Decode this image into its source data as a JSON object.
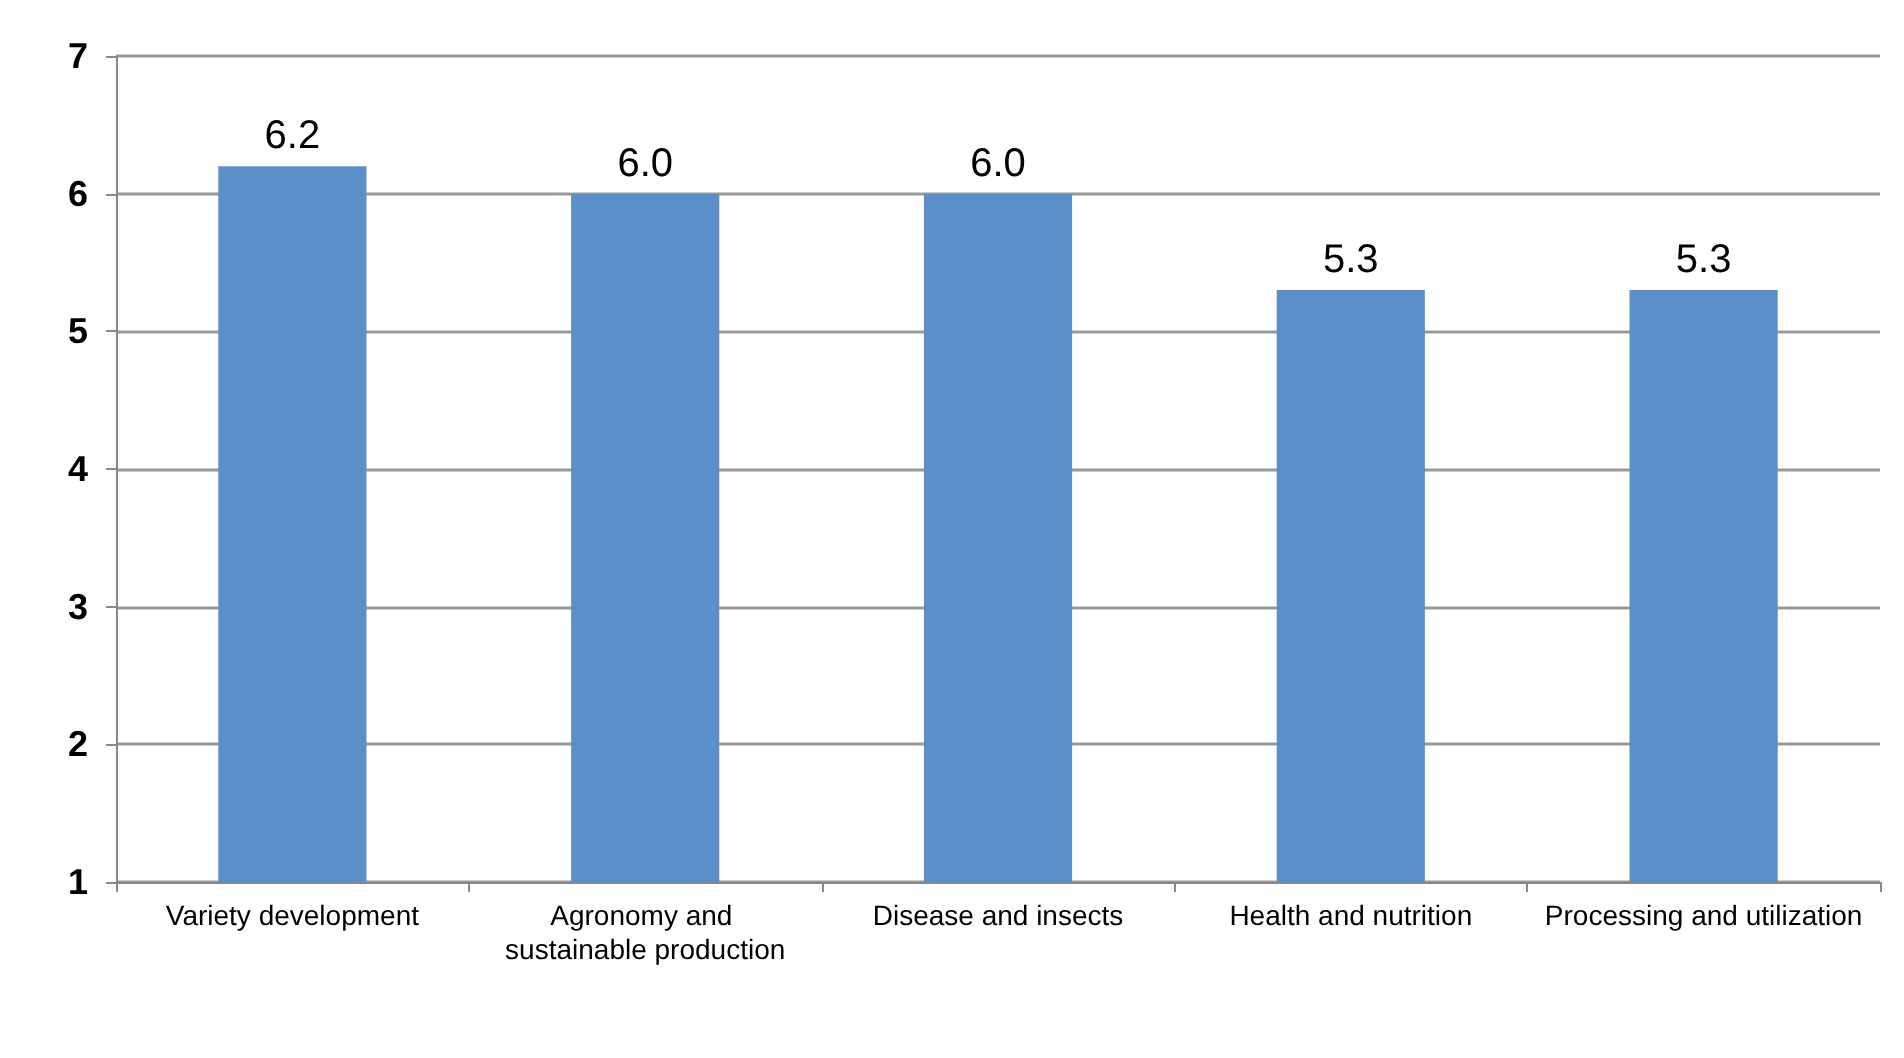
{
  "chart_data": {
    "type": "bar",
    "categories": [
      "Variety development",
      "Agronomy and sustainable production",
      "Disease and insects",
      "Health and nutrition",
      "Processing and utilization"
    ],
    "values": [
      6.2,
      6.0,
      6.0,
      5.3,
      5.3
    ],
    "value_labels": [
      "6.2",
      "6.0",
      "6.0",
      "5.3",
      "5.3"
    ],
    "color": "#5b8fc8",
    "ylim": [
      1,
      7
    ],
    "yticks": [
      1,
      2,
      3,
      4,
      5,
      6,
      7
    ],
    "grid": "y"
  }
}
